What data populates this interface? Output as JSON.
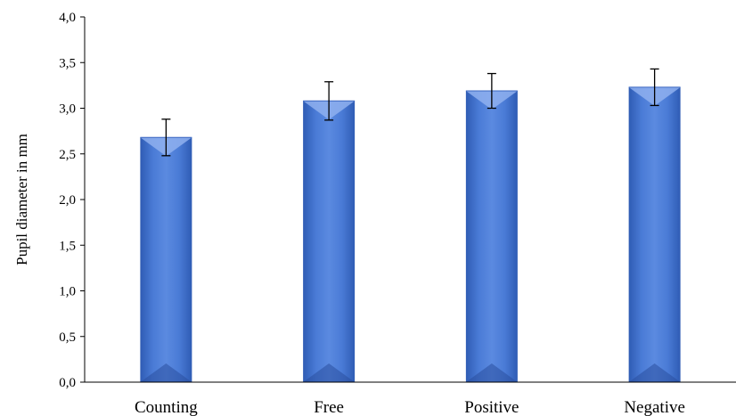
{
  "chart_data": {
    "type": "bar",
    "categories": [
      "Counting",
      "Free",
      "Positive",
      "Negative"
    ],
    "values": [
      2.68,
      3.08,
      3.19,
      3.23
    ],
    "error": [
      0.2,
      0.21,
      0.19,
      0.2
    ],
    "ylabel": "Pupil diameter in mm",
    "ylim": [
      0,
      4
    ],
    "yticks": [
      "0,0",
      "0,5",
      "1,0",
      "1,5",
      "2,0",
      "2,5",
      "3,0",
      "3,5",
      "4,0"
    ],
    "grid": false,
    "bar_color": "#4a78d0"
  }
}
